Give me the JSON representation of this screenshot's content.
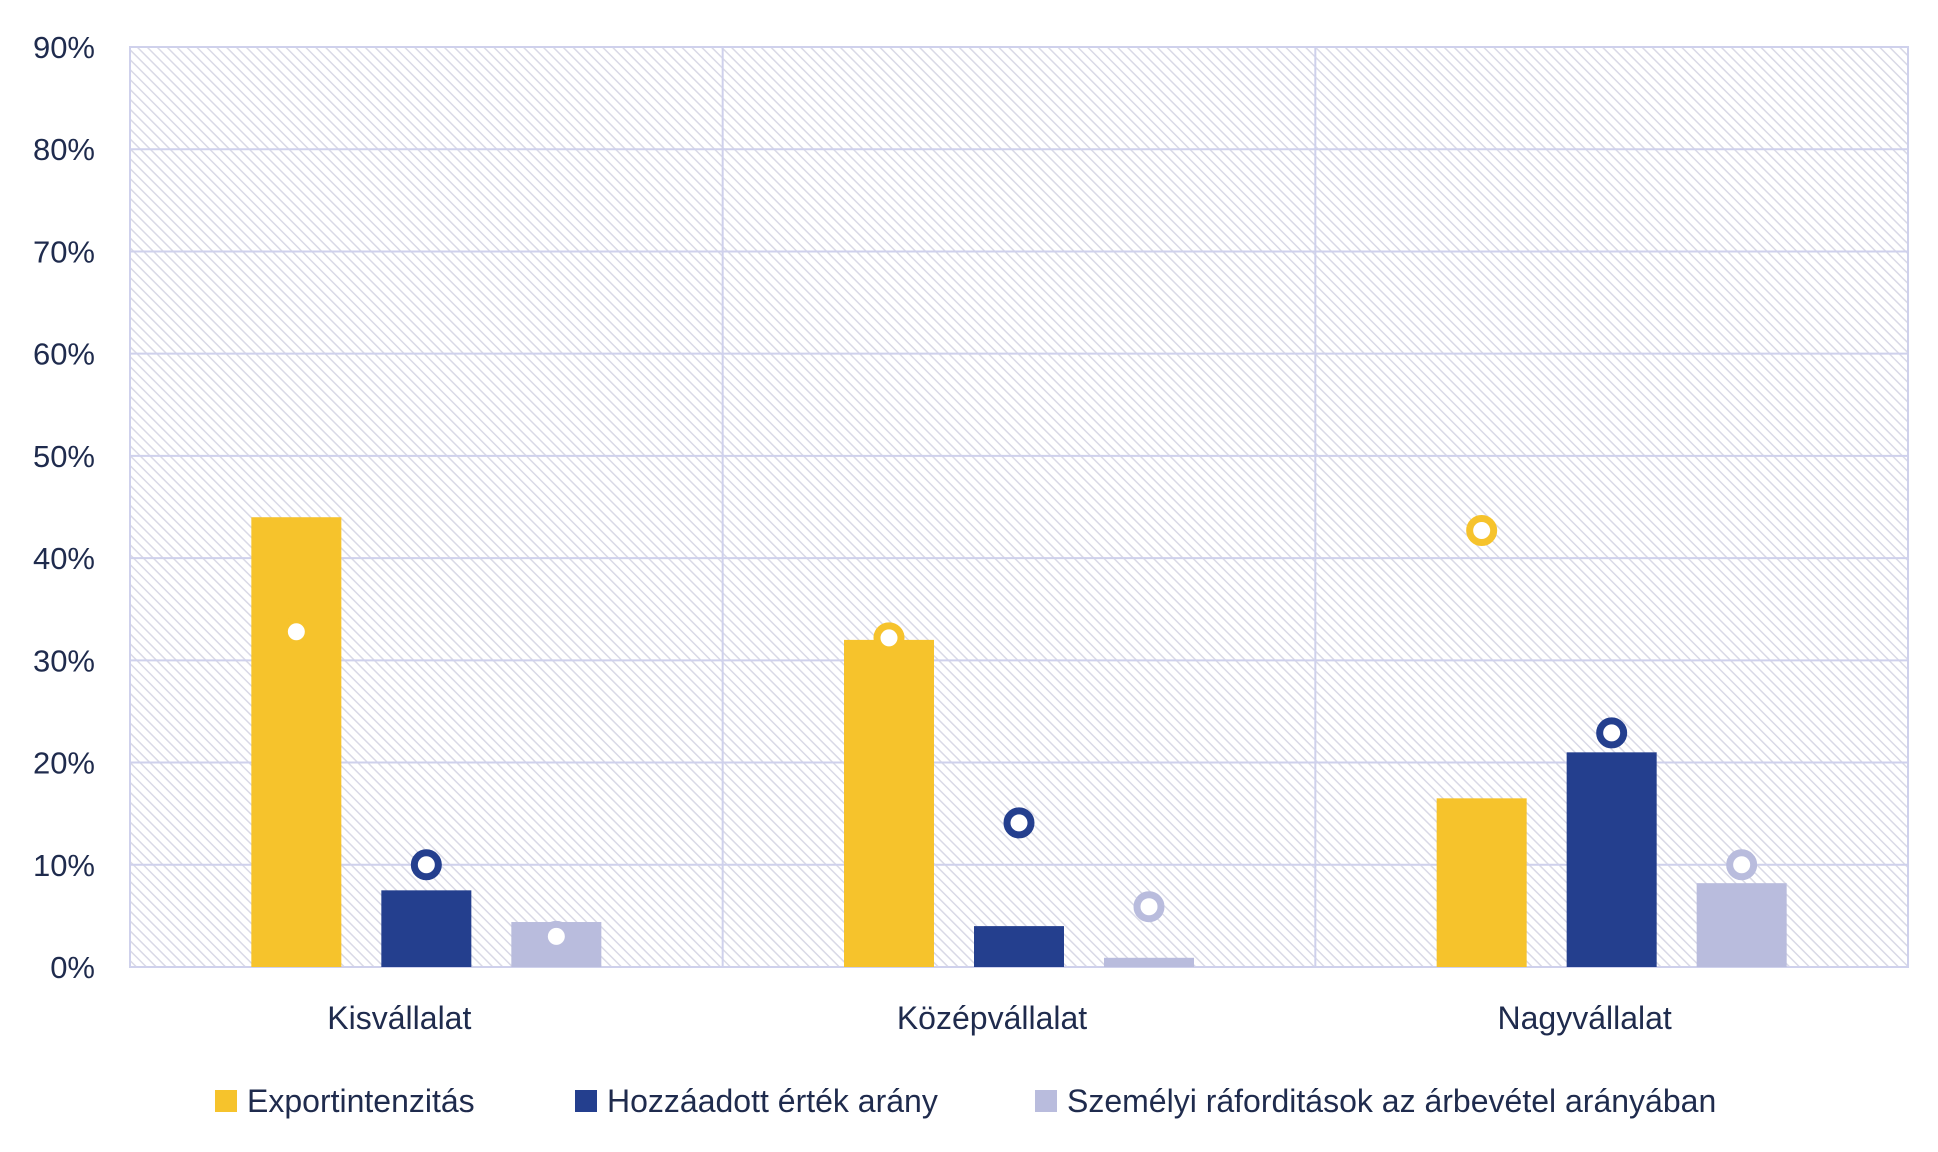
{
  "chart_data": {
    "type": "bar",
    "title": "",
    "xlabel": "",
    "ylabel": "",
    "ylim": [
      0,
      90
    ],
    "y_ticks": [
      "0%",
      "10%",
      "20%",
      "30%",
      "40%",
      "50%",
      "60%",
      "70%",
      "80%",
      "90%"
    ],
    "categories": [
      "Kisvállalat",
      "Középvállalat",
      "Nagyvállalat"
    ],
    "series": [
      {
        "name": "Exportintenzitás",
        "color": "#f6c32c",
        "values": [
          44.0,
          32.0,
          16.5
        ],
        "markers": [
          32.8,
          32.2,
          42.7
        ]
      },
      {
        "name": "Hozzáadott érték arány",
        "color": "#243f8e",
        "values": [
          7.5,
          4.0,
          21.0
        ],
        "markers": [
          10.0,
          14.1,
          22.9
        ]
      },
      {
        "name": "Személyi ráforditások az árbevétel arányában",
        "color": "#b9bcdd",
        "values": [
          4.4,
          0.9,
          8.2
        ],
        "markers": [
          3.0,
          5.9,
          10.0
        ]
      }
    ],
    "legend_position": "bottom",
    "grid": true
  }
}
